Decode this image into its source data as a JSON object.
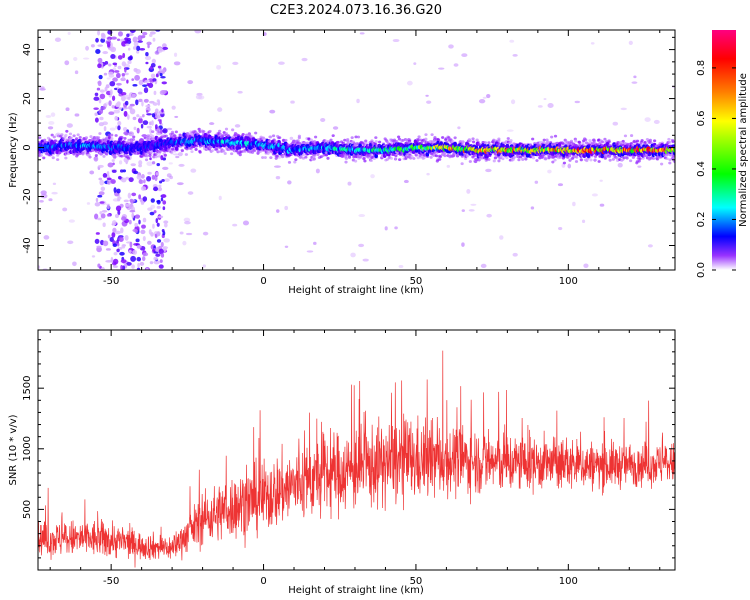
{
  "chart_data": [
    {
      "type": "heatmap",
      "title": "C2E3.2024.073.16.36.G20",
      "xlabel": "Height of straight line (km)",
      "ylabel": "Frequency (Hz)",
      "xlim": [
        -74,
        135
      ],
      "ylim": [
        -50,
        48
      ],
      "x_ticks": [
        -50,
        0,
        50,
        100
      ],
      "x_tick_labels": [
        "-50",
        "0",
        "50",
        "100"
      ],
      "y_ticks": [
        40,
        20,
        0,
        -20,
        -40
      ],
      "y_tick_labels": [
        "40",
        "20",
        "0",
        "-20",
        "-40"
      ],
      "grid": false,
      "colorbar": {
        "label": "Normalized spectral amplitude",
        "range": [
          0,
          0.95
        ],
        "ticks": [
          0.0,
          0.2,
          0.4,
          0.6,
          0.8
        ],
        "tick_labels": [
          "0.0",
          "0.2",
          "0.4",
          "0.6",
          "0.8"
        ],
        "colormap": [
          "#ffffff",
          "#8000ff",
          "#0000ff",
          "#00ffff",
          "#00ff00",
          "#ffff00",
          "#ff8000",
          "#ff0000",
          "#ff0080"
        ]
      },
      "ridge": {
        "x": [
          -74,
          -60,
          -50,
          -40,
          -30,
          -20,
          -10,
          0,
          10,
          20,
          30,
          40,
          50,
          60,
          70,
          80,
          90,
          100,
          110,
          120,
          135
        ],
        "center_hz": [
          0,
          1,
          0,
          0,
          2,
          3,
          2,
          1,
          -1,
          0,
          -1,
          -1,
          0,
          0,
          -1,
          -1,
          -1,
          -1,
          -1,
          -1,
          -1
        ],
        "amplitude": [
          0.3,
          0.35,
          0.3,
          0.25,
          0.3,
          0.35,
          0.4,
          0.35,
          0.35,
          0.4,
          0.45,
          0.45,
          0.55,
          0.7,
          0.75,
          0.75,
          0.75,
          0.8,
          0.85,
          0.85,
          0.85
        ]
      },
      "noise_band": {
        "x_range": [
          -55,
          -32
        ],
        "amplitude": 0.2
      }
    },
    {
      "type": "line",
      "title": "",
      "xlabel": "Height of straight line (km)",
      "ylabel": "SNR (10 * v/v)",
      "xlim": [
        -74,
        135
      ],
      "ylim": [
        0,
        1980
      ],
      "x_ticks": [
        -50,
        0,
        50,
        100
      ],
      "x_tick_labels": [
        "-50",
        "0",
        "50",
        "100"
      ],
      "y_ticks": [
        500,
        1000,
        1500
      ],
      "y_tick_labels": [
        "500",
        "1000",
        "1500"
      ],
      "grid": false,
      "series": [
        {
          "color": "#ee3333",
          "envelope": {
            "x": [
              -74,
              -60,
              -50,
              -40,
              -30,
              -25,
              -20,
              -10,
              0,
              10,
              20,
              30,
              40,
              45,
              50,
              60,
              70,
              80,
              90,
              100,
              110,
              120,
              135
            ],
            "base": [
              250,
              260,
              250,
              200,
              180,
              300,
              420,
              520,
              600,
              700,
              780,
              830,
              880,
              900,
              900,
              910,
              900,
              880,
              880,
              870,
              860,
              870,
              880
            ],
            "spread": [
              200,
              220,
              220,
              160,
              150,
              220,
              300,
              380,
              420,
              450,
              470,
              480,
              500,
              520,
              480,
              420,
              380,
              360,
              320,
              300,
              280,
              260,
              240
            ]
          }
        }
      ]
    }
  ]
}
